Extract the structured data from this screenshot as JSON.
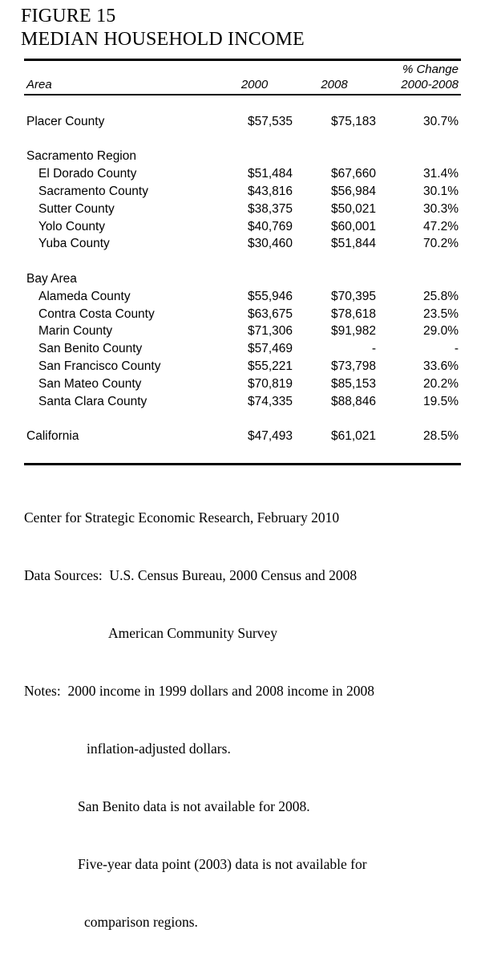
{
  "figure": {
    "label": "FIGURE 15",
    "title": "MEDIAN HOUSEHOLD INCOME"
  },
  "table": {
    "columns": {
      "area": "Area",
      "y2000": "2000",
      "y2008": "2008",
      "pct_line1": "% Change",
      "pct_line2": "2000-2008"
    },
    "rows": [
      {
        "type": "blank"
      },
      {
        "type": "data",
        "area": "Placer County",
        "y2000": "$57,535",
        "y2008": "$75,183",
        "pct": "30.7%"
      },
      {
        "type": "blank"
      },
      {
        "type": "group",
        "area": "Sacramento Region"
      },
      {
        "type": "sub",
        "area": "El Dorado County",
        "y2000": "$51,484",
        "y2008": "$67,660",
        "pct": "31.4%"
      },
      {
        "type": "sub",
        "area": "Sacramento County",
        "y2000": "$43,816",
        "y2008": "$56,984",
        "pct": "30.1%"
      },
      {
        "type": "sub",
        "area": "Sutter County",
        "y2000": "$38,375",
        "y2008": "$50,021",
        "pct": "30.3%"
      },
      {
        "type": "sub",
        "area": "Yolo County",
        "y2000": "$40,769",
        "y2008": "$60,001",
        "pct": "47.2%"
      },
      {
        "type": "sub",
        "area": "Yuba County",
        "y2000": "$30,460",
        "y2008": "$51,844",
        "pct": "70.2%"
      },
      {
        "type": "blank"
      },
      {
        "type": "group",
        "area": "Bay Area"
      },
      {
        "type": "sub",
        "area": "Alameda County",
        "y2000": "$55,946",
        "y2008": "$70,395",
        "pct": "25.8%"
      },
      {
        "type": "sub",
        "area": "Contra Costa County",
        "y2000": "$63,675",
        "y2008": "$78,618",
        "pct": "23.5%"
      },
      {
        "type": "sub",
        "area": "Marin County",
        "y2000": "$71,306",
        "y2008": "$91,982",
        "pct": "29.0%"
      },
      {
        "type": "sub",
        "area": "San Benito County",
        "y2000": "$57,469",
        "y2008": "-",
        "pct": "-"
      },
      {
        "type": "sub",
        "area": "San Francisco County",
        "y2000": "$55,221",
        "y2008": "$73,798",
        "pct": "33.6%"
      },
      {
        "type": "sub",
        "area": "San Mateo County",
        "y2000": "$70,819",
        "y2008": "$85,153",
        "pct": "20.2%"
      },
      {
        "type": "sub",
        "area": "Santa Clara County",
        "y2000": "$74,335",
        "y2008": "$88,846",
        "pct": "19.5%"
      },
      {
        "type": "blank"
      },
      {
        "type": "data",
        "area": "California",
        "y2000": "$47,493",
        "y2008": "$61,021",
        "pct": "28.5%"
      },
      {
        "type": "blank"
      }
    ]
  },
  "footer": {
    "lines": [
      "Center for Strategic Economic Research, February 2010",
      "Data Sources:  U.S. Census Bureau, 2000 Census and 2008",
      "American Community Survey",
      "Notes:  2000 income in 1999 dollars and 2008 income in 2008",
      "inflation-adjusted dollars.",
      "San Benito data is not available for 2008.",
      "Five-year data point (2003) data is not available for",
      "comparison regions."
    ]
  }
}
